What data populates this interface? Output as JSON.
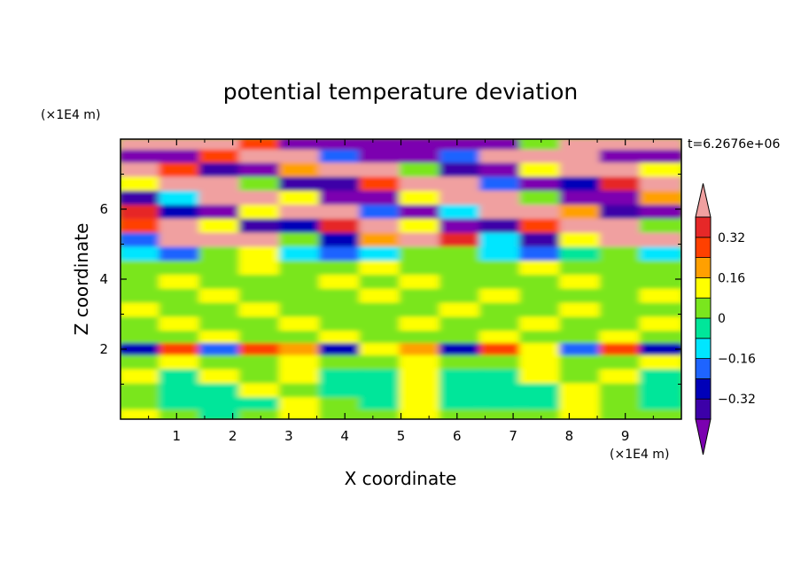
{
  "chart_data": {
    "type": "heatmap",
    "title": "potential temperature deviation",
    "xlabel": "X coordinate",
    "ylabel": "Z coordinate",
    "x_unit_label": "(×1E4 m)",
    "y_unit_label": "(×1E4 m)",
    "time_label": "t=6.2676e+06",
    "xlim": [
      0,
      10
    ],
    "ylim": [
      0,
      8
    ],
    "x_ticks": [
      "1",
      "2",
      "3",
      "4",
      "5",
      "6",
      "7",
      "8",
      "9"
    ],
    "y_ticks": [
      "2",
      "4",
      "6"
    ],
    "colorbar": {
      "levels": [
        -0.4,
        -0.32,
        -0.24,
        -0.16,
        -0.08,
        0,
        0.08,
        0.16,
        0.24,
        0.32,
        0.4
      ],
      "tick_labels": [
        "0.32",
        "0.16",
        "0",
        "−0.16",
        "−0.32"
      ],
      "tick_values": [
        0.32,
        0.16,
        0,
        -0.16,
        -0.32
      ],
      "colors": [
        "#7b00b0",
        "#3c00a8",
        "#0000b8",
        "#1e64ff",
        "#00e6ff",
        "#00e69a",
        "#7ae61e",
        "#ffff00",
        "#ffa000",
        "#ff4000",
        "#e62828",
        "#f0a0a0"
      ],
      "extend": "both"
    },
    "field_rows": [
      {
        "z": 7.85,
        "values": [
          0.45,
          0.5,
          0.5,
          0.3,
          -0.45,
          -0.5,
          -0.5,
          -0.5,
          -0.5,
          -0.5,
          0.0,
          0.45,
          0.45,
          0.5
        ]
      },
      {
        "z": 7.5,
        "values": [
          -0.45,
          -0.45,
          0.3,
          0.45,
          0.45,
          -0.2,
          -0.45,
          -0.5,
          -0.2,
          0.45,
          0.5,
          0.45,
          -0.45,
          -0.45
        ]
      },
      {
        "z": 7.1,
        "values": [
          0.45,
          0.3,
          -0.35,
          -0.45,
          0.2,
          0.45,
          0.45,
          0.0,
          -0.4,
          -0.45,
          0.1,
          0.45,
          0.45,
          0.1
        ]
      },
      {
        "z": 6.7,
        "values": [
          0.1,
          0.45,
          0.45,
          0.0,
          -0.4,
          -0.35,
          0.3,
          0.45,
          0.45,
          -0.2,
          -0.45,
          -0.3,
          0.35,
          0.45
        ]
      },
      {
        "z": 6.3,
        "values": [
          -0.4,
          -0.1,
          0.4,
          0.45,
          0.1,
          -0.45,
          -0.45,
          0.1,
          0.45,
          0.45,
          0.0,
          -0.45,
          -0.45,
          0.2
        ]
      },
      {
        "z": 5.9,
        "values": [
          0.35,
          -0.3,
          -0.45,
          0.1,
          0.45,
          0.4,
          -0.2,
          -0.45,
          -0.1,
          0.45,
          0.45,
          0.2,
          -0.35,
          -0.45
        ]
      },
      {
        "z": 5.5,
        "values": [
          0.3,
          0.45,
          0.1,
          -0.4,
          -0.3,
          0.35,
          0.45,
          0.1,
          -0.45,
          -0.35,
          0.3,
          0.45,
          0.45,
          0.0
        ]
      },
      {
        "z": 5.1,
        "values": [
          -0.2,
          0.4,
          0.45,
          0.45,
          0.0,
          -0.3,
          0.2,
          0.45,
          0.35,
          -0.15,
          -0.35,
          0.1,
          0.45,
          0.45
        ]
      },
      {
        "z": 4.7,
        "values": [
          -0.1,
          -0.2,
          0.05,
          0.1,
          -0.15,
          -0.2,
          -0.1,
          0.0,
          0.05,
          -0.15,
          -0.2,
          -0.05,
          0.05,
          -0.1
        ]
      },
      {
        "z": 4.3,
        "values": [
          0.05,
          0.0,
          0.05,
          0.1,
          0.0,
          0.05,
          0.1,
          0.05,
          0.0,
          0.05,
          0.1,
          0.05,
          0.0,
          0.05
        ]
      },
      {
        "z": 3.9,
        "values": [
          0.05,
          0.1,
          0.05,
          0.0,
          0.05,
          0.1,
          0.05,
          0.1,
          0.05,
          0.0,
          0.05,
          0.1,
          0.05,
          0.05
        ]
      },
      {
        "z": 3.5,
        "values": [
          0.05,
          0.05,
          0.1,
          0.05,
          0.0,
          0.05,
          0.1,
          0.05,
          0.05,
          0.1,
          0.05,
          0.0,
          0.05,
          0.1
        ]
      },
      {
        "z": 3.1,
        "values": [
          0.1,
          0.05,
          0.05,
          0.1,
          0.05,
          0.05,
          0.0,
          0.05,
          0.1,
          0.05,
          0.05,
          0.1,
          0.05,
          0.05
        ]
      },
      {
        "z": 2.7,
        "values": [
          0.05,
          0.1,
          0.05,
          0.05,
          0.1,
          0.05,
          0.05,
          0.1,
          0.05,
          0.05,
          0.1,
          0.05,
          0.05,
          0.1
        ]
      },
      {
        "z": 2.3,
        "values": [
          0.05,
          0.05,
          0.1,
          0.05,
          0.05,
          0.1,
          0.05,
          0.05,
          0.05,
          0.1,
          0.05,
          0.05,
          0.1,
          0.05
        ]
      },
      {
        "z": 2.0,
        "values": [
          -0.3,
          0.25,
          -0.2,
          0.3,
          0.2,
          -0.25,
          0.1,
          0.2,
          -0.3,
          0.25,
          0.15,
          -0.2,
          0.3,
          -0.25
        ]
      },
      {
        "z": 1.6,
        "values": [
          0.05,
          0.1,
          0.05,
          0.05,
          0.1,
          0.05,
          0.05,
          0.1,
          0.05,
          0.05,
          0.1,
          0.05,
          0.05,
          0.1
        ]
      },
      {
        "z": 1.2,
        "values": [
          0.1,
          -0.03,
          0.1,
          0.05,
          0.1,
          -0.03,
          -0.03,
          0.1,
          -0.03,
          -0.03,
          0.1,
          0.05,
          0.1,
          -0.03
        ]
      },
      {
        "z": 0.8,
        "values": [
          0.05,
          -0.03,
          -0.03,
          0.1,
          0.05,
          -0.03,
          -0.03,
          0.1,
          -0.03,
          -0.03,
          -0.03,
          0.1,
          0.05,
          -0.03
        ]
      },
      {
        "z": 0.4,
        "values": [
          0.05,
          -0.03,
          -0.03,
          -0.03,
          0.1,
          0.05,
          -0.03,
          0.1,
          -0.03,
          -0.03,
          -0.03,
          0.1,
          0.05,
          -0.03
        ]
      },
      {
        "z": 0.1,
        "values": [
          0.1,
          0.05,
          -0.03,
          0.05,
          0.1,
          0.05,
          0.05,
          0.1,
          0.05,
          0.05,
          0.05,
          0.1,
          0.05,
          0.05
        ]
      }
    ]
  }
}
